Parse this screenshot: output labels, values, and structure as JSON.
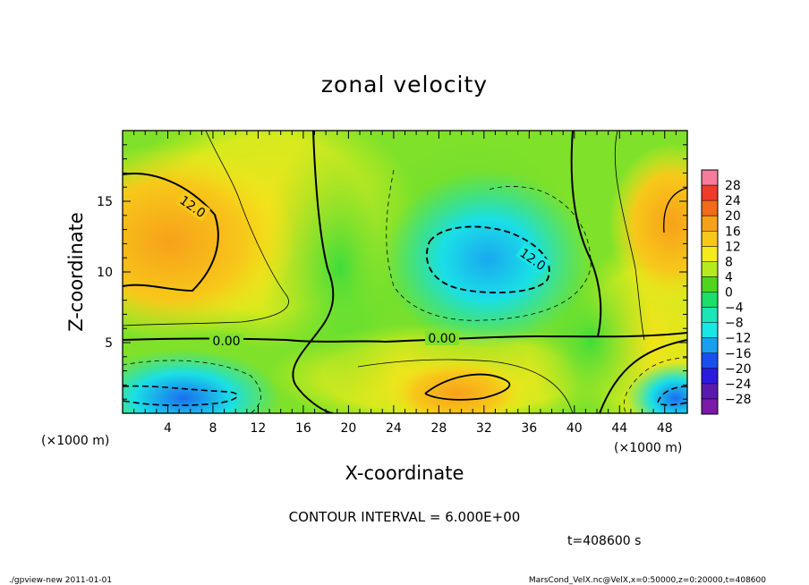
{
  "chart_data": {
    "type": "heatmap",
    "title": "zonal velocity",
    "xlabel": "X-coordinate",
    "ylabel": "Z-coordinate",
    "x_unit": "(×1000 m)",
    "y_unit": "(×1000 m)",
    "xlim": [
      0,
      50
    ],
    "ylim": [
      0,
      20
    ],
    "x_ticks": [
      "4",
      "8",
      "12",
      "16",
      "20",
      "24",
      "28",
      "32",
      "36",
      "40",
      "44",
      "48"
    ],
    "y_ticks": [
      "5",
      "10",
      "15"
    ],
    "colorbar": {
      "labels": [
        "28",
        "24",
        "20",
        "16",
        "12",
        "8",
        "4",
        "0",
        "−4",
        "−8",
        "−12",
        "−16",
        "−20",
        "−24",
        "−28"
      ],
      "colors": [
        "#f77b9a",
        "#f23a2a",
        "#f26a1a",
        "#f7a11a",
        "#f7c81a",
        "#f5ea1a",
        "#b7ea1e",
        "#4fd61c",
        "#1adf6a",
        "#1ae6b8",
        "#1ae6e6",
        "#1a9ff0",
        "#1a4ef0",
        "#2a1ae0",
        "#5a1ab0",
        "#7a1aa8"
      ]
    },
    "contour_interval": "CONTOUR INTERVAL = 6.000E+00",
    "contour_labels": [
      "12.0",
      "12.0",
      "0.00",
      "0.00"
    ],
    "time_label": "t=408600 s",
    "regions": [
      {
        "x": 3.5,
        "z": 12.5,
        "value": 16
      },
      {
        "x": 8,
        "z": 10,
        "value": 12
      },
      {
        "x": 46,
        "z": 12,
        "value": 12
      },
      {
        "x": 31,
        "z": 11,
        "value": -12
      },
      {
        "x": 30,
        "z": 1.5,
        "value": 14
      },
      {
        "x": 4,
        "z": 1.5,
        "value": -12
      },
      {
        "x": 48,
        "z": 1.5,
        "value": -10
      },
      {
        "x": 20,
        "z": 12,
        "value": 2
      },
      {
        "x": 38,
        "z": 4,
        "value": 4
      }
    ]
  },
  "footer": {
    "left": "./gpview-new   2011-01-01",
    "right": "MarsCond_VelX.nc@VelX,x=0:50000,z=0:20000,t=408600"
  }
}
